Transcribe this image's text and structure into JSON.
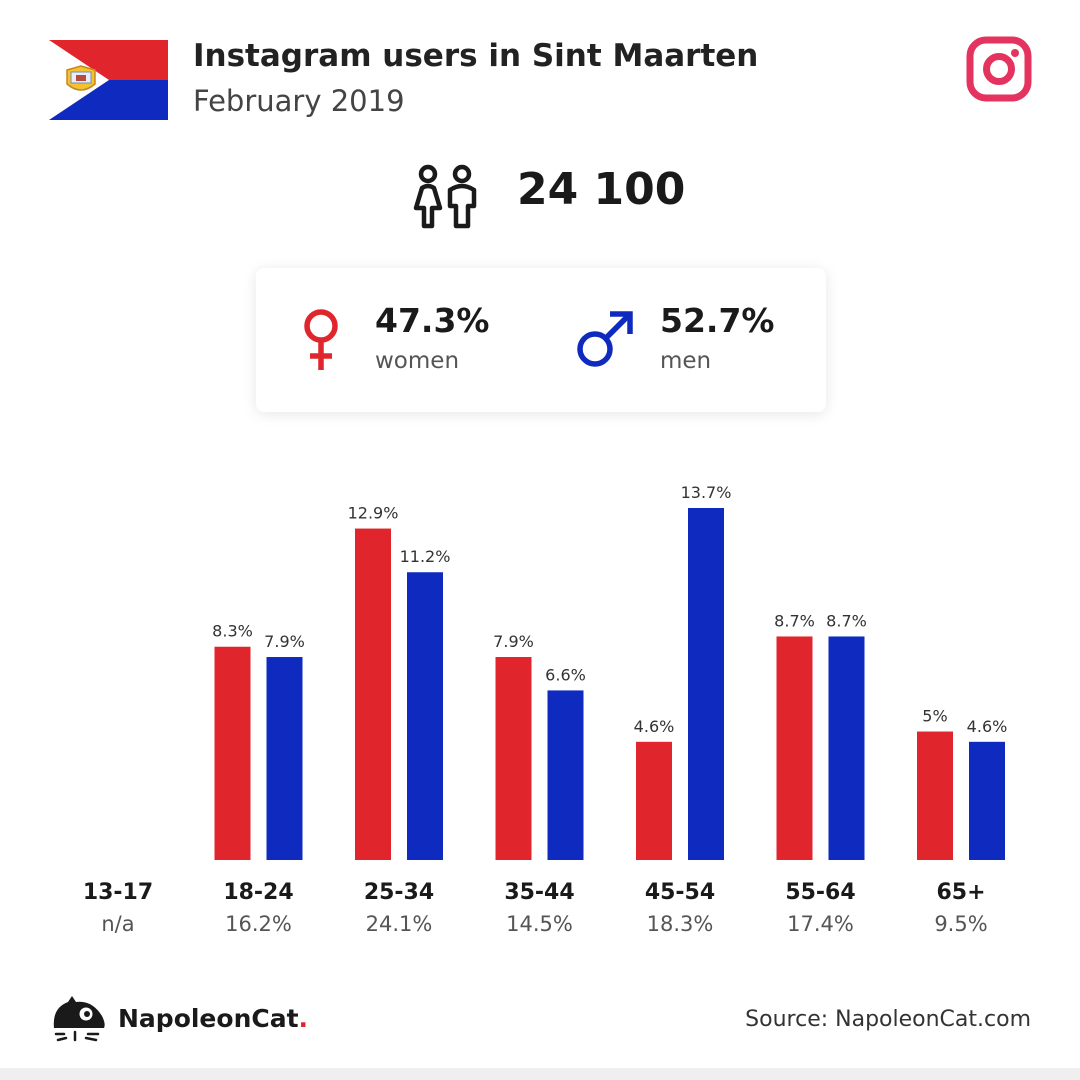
{
  "header": {
    "title": "Instagram users in Sint Maarten",
    "subtitle": "February 2019"
  },
  "total_users": "24 100",
  "gender": {
    "women": {
      "pct": "47.3%",
      "label": "women",
      "color": "#e0262c"
    },
    "men": {
      "pct": "52.7%",
      "label": "men",
      "color": "#0f2bbf"
    }
  },
  "icons": {
    "flag": "sint-maarten-flag-icon",
    "instagram": "instagram-icon",
    "people": "people-icon",
    "female": "female-symbol-icon",
    "male": "male-symbol-icon",
    "brand": "napoleoncat-logo-icon"
  },
  "chart_data": {
    "type": "bar",
    "categories": [
      "13-17",
      "18-24",
      "25-34",
      "35-44",
      "45-54",
      "55-64",
      "65+"
    ],
    "category_totals": [
      "n/a",
      "16.2%",
      "24.1%",
      "14.5%",
      "18.3%",
      "17.4%",
      "9.5%"
    ],
    "series": [
      {
        "name": "women",
        "color": "#e0262c",
        "values": [
          null,
          8.3,
          12.9,
          7.9,
          4.6,
          8.7,
          5
        ],
        "labels": [
          "",
          "8.3%",
          "12.9%",
          "7.9%",
          "4.6%",
          "8.7%",
          "5%"
        ]
      },
      {
        "name": "men",
        "color": "#0f2bbf",
        "values": [
          null,
          7.9,
          11.2,
          6.6,
          13.7,
          8.7,
          4.6
        ],
        "labels": [
          "",
          "7.9%",
          "11.2%",
          "6.6%",
          "13.7%",
          "8.7%",
          "4.6%"
        ]
      }
    ],
    "ylim": [
      0,
      13.7
    ],
    "grid": false,
    "legend": "none"
  },
  "footer": {
    "brand": "NapoleonCat",
    "brand_dot": ".",
    "source": "Source: NapoleonCat.com"
  }
}
